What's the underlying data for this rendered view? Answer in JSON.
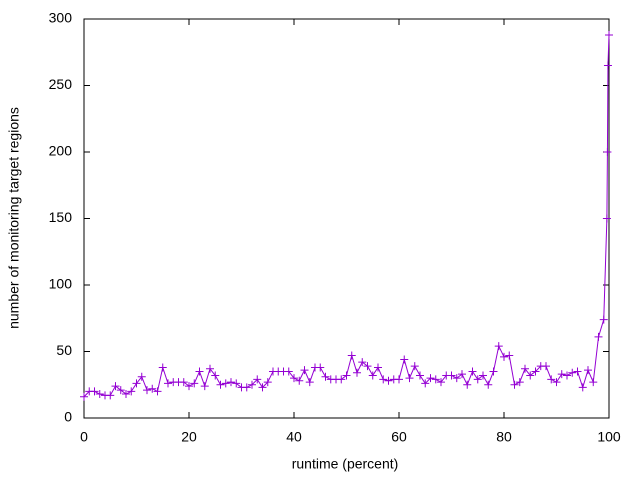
{
  "chart_data": {
    "type": "line",
    "x_label": "runtime (percent)",
    "y_label": "number of monitoring target regions",
    "x": [
      0,
      1,
      2,
      3,
      4,
      5,
      6,
      7,
      8,
      9,
      10,
      11,
      12,
      13,
      14,
      15,
      16,
      17,
      18,
      19,
      20,
      21,
      22,
      23,
      24,
      25,
      26,
      27,
      28,
      29,
      30,
      31,
      32,
      33,
      34,
      35,
      36,
      37,
      38,
      39,
      40,
      41,
      42,
      43,
      44,
      45,
      46,
      47,
      48,
      49,
      50,
      51,
      52,
      53,
      54,
      55,
      56,
      57,
      58,
      59,
      60,
      61,
      62,
      63,
      64,
      65,
      66,
      67,
      68,
      69,
      70,
      71,
      72,
      73,
      74,
      75,
      76,
      77,
      78,
      79,
      80,
      81,
      82,
      83,
      84,
      85,
      86,
      87,
      88,
      89,
      90,
      91,
      92,
      93,
      94,
      95,
      96,
      97,
      98,
      99,
      99.6,
      99.7,
      99.8,
      100
    ],
    "series": [
      {
        "color": "#9400d3",
        "marker": "+",
        "values": [
          16,
          20,
          20,
          18,
          17,
          17,
          24,
          21,
          18,
          20,
          26,
          31,
          21,
          22,
          20,
          38,
          26,
          27,
          27,
          27,
          24,
          26,
          35,
          24,
          37,
          32,
          25,
          26,
          27,
          26,
          23,
          23,
          25,
          29,
          23,
          27,
          35,
          35,
          35,
          35,
          30,
          28,
          36,
          27,
          38,
          38,
          31,
          29,
          29,
          29,
          32,
          47,
          34,
          42,
          39,
          32,
          38,
          29,
          28,
          29,
          29,
          44,
          30,
          39,
          32,
          26,
          30,
          29,
          27,
          32,
          32,
          30,
          33,
          25,
          35,
          29,
          32,
          25,
          35,
          54,
          46,
          47,
          25,
          27,
          37,
          32,
          35,
          39,
          39,
          29,
          27,
          33,
          32,
          34,
          35,
          23,
          36,
          27,
          61,
          74,
          150,
          200,
          265,
          288
        ]
      }
    ],
    "xlim": [
      0,
      100
    ],
    "xticks": [
      0,
      20,
      40,
      60,
      80,
      100
    ],
    "ylim": [
      0,
      300
    ],
    "yticks": [
      0,
      50,
      100,
      150,
      200,
      250,
      300
    ]
  }
}
